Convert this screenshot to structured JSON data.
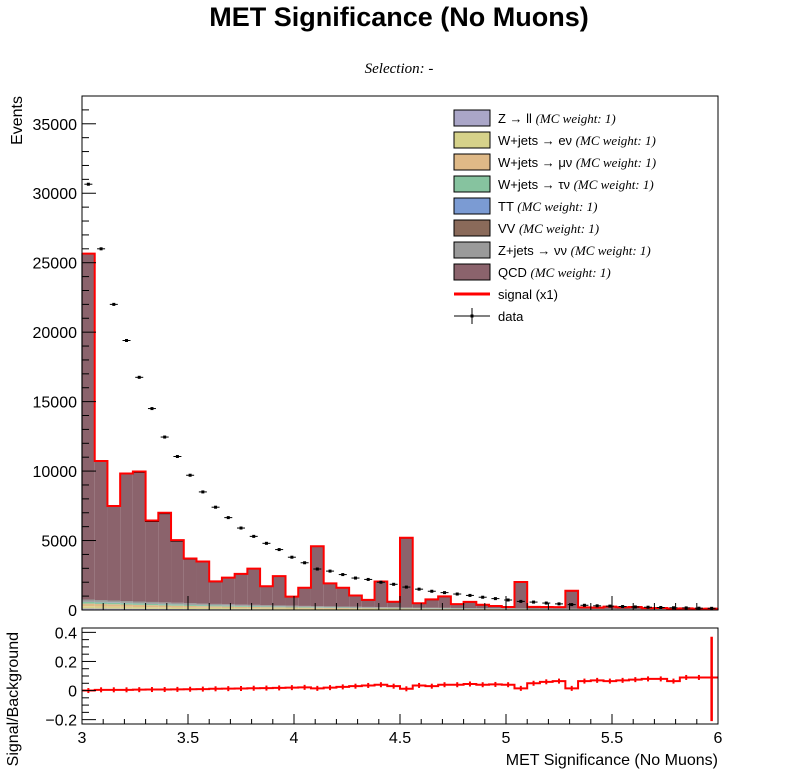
{
  "title": "MET Significance (No Muons)",
  "subtitle": "Selection: -",
  "chart_data": [
    {
      "type": "bar",
      "stacked": true,
      "ylabel": "Events",
      "xlim": [
        3,
        6
      ],
      "ylim": [
        0,
        37000
      ],
      "y_ticks": [
        "0",
        "5000",
        "10000",
        "15000",
        "20000",
        "25000",
        "30000",
        "35000"
      ],
      "bin_edges": [
        3.0,
        3.06,
        3.12,
        3.18,
        3.24,
        3.3,
        3.36,
        3.42,
        3.48,
        3.54,
        3.6,
        3.66,
        3.72,
        3.78,
        3.84,
        3.9,
        3.96,
        4.02,
        4.08,
        4.14,
        4.2,
        4.26,
        4.32,
        4.38,
        4.44,
        4.5,
        4.56,
        4.62,
        4.68,
        4.74,
        4.8,
        4.86,
        4.92,
        4.98,
        5.04,
        5.1,
        5.16,
        5.22,
        5.28,
        5.34,
        5.4,
        5.46,
        5.52,
        5.58,
        5.64,
        5.7,
        5.76,
        5.82,
        5.88,
        5.94,
        6.0
      ],
      "series": [
        {
          "name": "Z → ll",
          "weight": "(MC weight: 1)",
          "color": "#aaa6c8",
          "values": [
            110,
            104,
            98,
            93,
            88,
            83,
            78,
            74,
            70,
            66,
            62,
            58,
            55,
            52,
            49,
            46,
            43,
            41,
            38,
            36,
            34,
            32,
            30,
            28,
            27,
            25,
            24,
            22,
            21,
            20,
            19,
            18,
            17,
            16,
            15,
            14,
            13,
            12,
            12,
            11,
            10,
            10,
            9,
            9,
            8,
            8,
            7,
            7,
            6,
            6
          ]
        },
        {
          "name": "W+jets → eν",
          "weight": "(MC weight: 1)",
          "color": "#d6d28a",
          "values": [
            160,
            152,
            144,
            136,
            128,
            121,
            114,
            108,
            102,
            96,
            90,
            85,
            80,
            75,
            71,
            67,
            63,
            59,
            56,
            52,
            49,
            46,
            44,
            41,
            39,
            36,
            34,
            32,
            30,
            29,
            27,
            25,
            24,
            23,
            21,
            20,
            19,
            18,
            17,
            16,
            15,
            14,
            13,
            12,
            12,
            11,
            10,
            10,
            9,
            9
          ]
        },
        {
          "name": "W+jets → μν",
          "weight": "(MC weight: 1)",
          "color": "#dfb987",
          "values": [
            190,
            181,
            172,
            163,
            154,
            145,
            137,
            129,
            122,
            115,
            108,
            102,
            96,
            90,
            85,
            80,
            75,
            71,
            67,
            63,
            59,
            55,
            52,
            49,
            46,
            43,
            41,
            38,
            36,
            34,
            32,
            30,
            28,
            27,
            25,
            24,
            22,
            21,
            20,
            19,
            17,
            16,
            15,
            15,
            14,
            13,
            12,
            11,
            11,
            10
          ]
        },
        {
          "name": "W+jets → τν",
          "weight": "(MC weight: 1)",
          "color": "#86c39f",
          "values": [
            120,
            114,
            108,
            102,
            97,
            92,
            87,
            82,
            77,
            73,
            69,
            65,
            61,
            58,
            55,
            52,
            49,
            46,
            43,
            41,
            39,
            36,
            34,
            32,
            31,
            29,
            27,
            26,
            24,
            23,
            21,
            20,
            19,
            18,
            17,
            16,
            15,
            14,
            13,
            12,
            12,
            11,
            10,
            10,
            9,
            9,
            8,
            8,
            7,
            7
          ]
        },
        {
          "name": "TT",
          "weight": "(MC weight: 1)",
          "color": "#7b9bd3",
          "values": [
            20,
            19,
            18,
            17,
            16,
            16,
            15,
            14,
            14,
            13,
            12,
            12,
            11,
            11,
            10,
            10,
            9,
            9,
            8,
            8,
            8,
            7,
            7,
            7,
            6,
            6,
            6,
            5,
            5,
            5,
            5,
            4,
            4,
            4,
            4,
            4,
            3,
            3,
            3,
            3,
            3,
            3,
            3,
            2,
            2,
            2,
            2,
            2,
            2,
            2
          ]
        },
        {
          "name": "VV",
          "weight": "(MC weight: 1)",
          "color": "#8a6a5a",
          "values": [
            15,
            14,
            14,
            13,
            13,
            12,
            12,
            11,
            11,
            10,
            10,
            9,
            9,
            9,
            8,
            8,
            8,
            7,
            7,
            7,
            6,
            6,
            6,
            6,
            5,
            5,
            5,
            5,
            5,
            4,
            4,
            4,
            4,
            4,
            4,
            3,
            3,
            3,
            3,
            3,
            3,
            3,
            3,
            2,
            2,
            2,
            2,
            2,
            2,
            2
          ]
        },
        {
          "name": "Z+jets → νν",
          "weight": "(MC weight: 1)",
          "color": "#9a9a9a",
          "values": [
            140,
            134,
            128,
            122,
            116,
            110,
            105,
            100,
            95,
            90,
            86,
            82,
            78,
            74,
            70,
            67,
            64,
            61,
            58,
            55,
            52,
            50,
            47,
            45,
            43,
            41,
            39,
            37,
            35,
            33,
            32,
            30,
            29,
            27,
            26,
            25,
            24,
            22,
            21,
            20,
            19,
            18,
            17,
            17,
            16,
            15,
            14,
            14,
            13,
            12
          ]
        },
        {
          "name": "QCD",
          "weight": "(MC weight: 1)",
          "color": "#8b636c",
          "values": [
            24900,
            10000,
            6800,
            9200,
            9300,
            5800,
            6400,
            4450,
            3180,
            3000,
            1600,
            1900,
            2200,
            2600,
            1350,
            2100,
            650,
            1300,
            4300,
            1650,
            1350,
            800,
            500,
            1830,
            380,
            5000,
            300,
            580,
            810,
            260,
            430,
            230,
            150,
            80,
            1880,
            100,
            100,
            100,
            1280,
            80,
            70,
            150,
            110,
            130,
            60,
            70,
            40,
            50,
            30,
            40
          ]
        }
      ],
      "signal": {
        "name": "signal (x1)",
        "color": "#ff0000",
        "values": [
          25655,
          10728,
          7482,
          9825,
          9972,
          6441,
          7001,
          5028,
          3706,
          3492,
          2063,
          2327,
          2604,
          2979,
          1713,
          2435,
          966,
          1599,
          4585,
          1918,
          1605,
          1040,
          728,
          2050,
          592,
          5201,
          490,
          762,
          983,
          423,
          587,
          379,
          292,
          217,
          2012,
          226,
          220,
          211,
          1385,
          186,
          170,
          244,
          199,
          215,
          139,
          145,
          109,
          115,
          89,
          96
        ]
      },
      "data": {
        "name": "data",
        "color": "#000000",
        "values": [
          30650,
          26000,
          22000,
          19400,
          16750,
          14500,
          12450,
          11050,
          9700,
          8500,
          7400,
          6650,
          5900,
          5300,
          4800,
          4350,
          3800,
          3400,
          2950,
          2800,
          2550,
          2300,
          2200,
          2000,
          1850,
          1650,
          1500,
          1350,
          1250,
          1150,
          1050,
          920,
          820,
          720,
          620,
          570,
          500,
          440,
          390,
          340,
          300,
          280,
          250,
          220,
          200,
          180,
          160,
          150,
          130,
          120
        ]
      }
    },
    {
      "type": "line",
      "ylabel": "Signal/Background",
      "xlabel": "MET Significance (No Muons)",
      "xlim": [
        3,
        6
      ],
      "ylim": [
        -0.23,
        0.43
      ],
      "x_ticks": [
        "3",
        "3.5",
        "4",
        "4.5",
        "5",
        "5.5",
        "6"
      ],
      "y_ticks": [
        "−0.2",
        "0",
        "0.2",
        "0.4"
      ],
      "series": [
        {
          "name": "signal/background",
          "color": "#ff0000",
          "values": [
            0.0,
            0.005,
            0.005,
            0.005,
            0.006,
            0.007,
            0.007,
            0.008,
            0.009,
            0.01,
            0.012,
            0.013,
            0.014,
            0.016,
            0.017,
            0.018,
            0.02,
            0.022,
            0.015,
            0.02,
            0.025,
            0.03,
            0.035,
            0.04,
            0.03,
            0.012,
            0.035,
            0.03,
            0.04,
            0.04,
            0.045,
            0.04,
            0.042,
            0.04,
            0.015,
            0.05,
            0.06,
            0.065,
            0.015,
            0.065,
            0.07,
            0.065,
            0.07,
            0.075,
            0.08,
            0.08,
            0.065,
            0.09,
            0.09,
            0.09
          ]
        }
      ],
      "last_error": [
        -0.21,
        0.37
      ]
    }
  ]
}
